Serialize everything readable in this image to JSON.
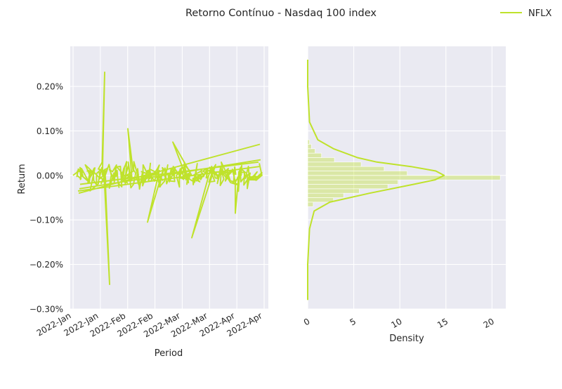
{
  "figure": {
    "title": "Retorno Contínuo - Nasdaq 100 index",
    "legend": {
      "position": "top-right",
      "label": "NFLX",
      "color": "#bfe22b"
    }
  },
  "chart_data": [
    {
      "type": "line",
      "xlabel": "Period",
      "ylabel": "Return",
      "series_name": "NFLX",
      "color": "#bfe22b",
      "grid": true,
      "x_range": [
        "2022-01-03",
        "2022-04-29"
      ],
      "ylim": [
        -0.003,
        0.0029
      ],
      "x_tick_labels": [
        "2022-Jan",
        "2022-Jan",
        "2022-Feb",
        "2022-Feb",
        "2022-Mar",
        "2022-Mar",
        "2022-Apr",
        "2022-Apr"
      ],
      "y_ticks": [
        -0.003,
        -0.002,
        -0.001,
        0.0,
        0.001,
        0.002
      ],
      "y_tick_labels": [
        "−0.30%",
        "−0.20%",
        "−0.10%",
        "0.00%",
        "0.10%",
        "0.20%"
      ],
      "notes": "Many overlapping intraday return paths, mostly within ±0.05%; peak ≈ +0.23% in mid-Jan, trough ≈ −0.245% in late Jan"
    },
    {
      "type": "histogram",
      "orientation": "horizontal",
      "xlabel": "Density",
      "color": "#bfe22b",
      "xlim": [
        0,
        21.5
      ],
      "x_ticks": [
        0,
        5,
        10,
        15,
        20
      ],
      "x_tick_labels": [
        "0",
        "5",
        "10",
        "15",
        "20"
      ],
      "shared_y_with": "Return",
      "bins": [
        {
          "y_min": -0.0007,
          "y_max": -0.0006,
          "density": 0.6
        },
        {
          "y_min": -0.0006,
          "y_max": -0.0005,
          "density": 2.8
        },
        {
          "y_min": -0.0005,
          "y_max": -0.0004,
          "density": 3.9
        },
        {
          "y_min": -0.0004,
          "y_max": -0.0003,
          "density": 5.6
        },
        {
          "y_min": -0.0003,
          "y_max": -0.0002,
          "density": 8.7
        },
        {
          "y_min": -0.0002,
          "y_max": -0.0001,
          "density": 9.8
        },
        {
          "y_min": -0.0001,
          "y_max": 0.0,
          "density": 20.9
        },
        {
          "y_min": 0.0,
          "y_max": 0.0001,
          "density": 10.8
        },
        {
          "y_min": 0.0001,
          "y_max": 0.0002,
          "density": 8.3
        },
        {
          "y_min": 0.0002,
          "y_max": 0.0003,
          "density": 5.8
        },
        {
          "y_min": 0.0003,
          "y_max": 0.0004,
          "density": 2.9
        },
        {
          "y_min": 0.0004,
          "y_max": 0.0005,
          "density": 1.5
        },
        {
          "y_min": 0.0005,
          "y_max": 0.0006,
          "density": 0.8
        },
        {
          "y_min": 0.0006,
          "y_max": 0.0007,
          "density": 0.4
        },
        {
          "y_min": 0.0007,
          "y_max": 0.0008,
          "density": 0.2
        }
      ],
      "kde": {
        "y": [
          -0.0028,
          -0.002,
          -0.0012,
          -0.0008,
          -0.0006,
          -0.0004,
          -0.0002,
          -0.0001,
          0.0,
          0.0001,
          0.0002,
          0.0003,
          0.0004,
          0.0006,
          0.0008,
          0.0012,
          0.002,
          0.0026
        ],
        "density": [
          0.0,
          0.0,
          0.2,
          0.7,
          2.4,
          6.7,
          11.5,
          13.8,
          14.8,
          13.9,
          11.2,
          7.5,
          5.4,
          2.8,
          1.1,
          0.2,
          0.0,
          0.0
        ]
      }
    }
  ]
}
